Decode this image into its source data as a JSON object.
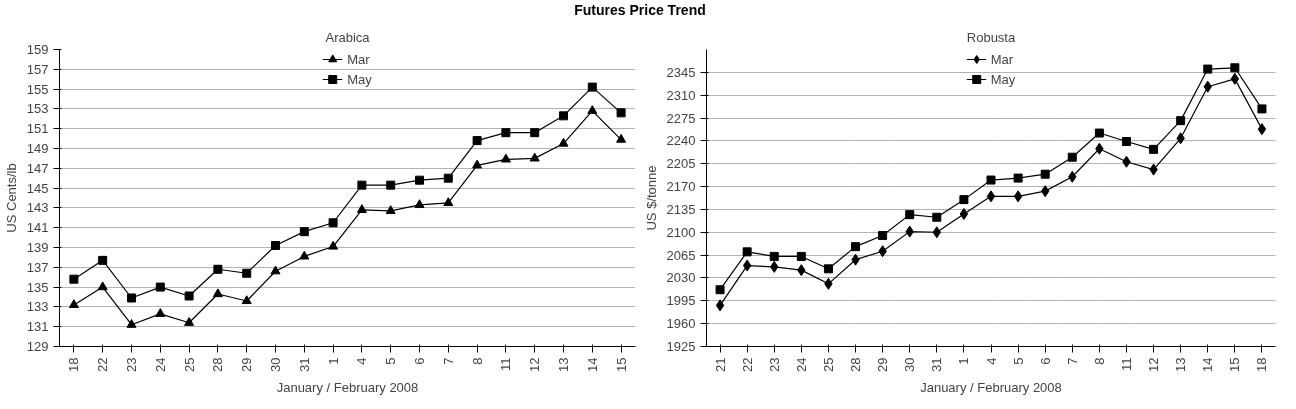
{
  "chart_data": [
    {
      "type": "line",
      "title": "Arabica",
      "annotations": [
        "Futures Price Trend"
      ],
      "xlabel": "January / February 2008",
      "ylabel": "US Cents/lb",
      "categories": [
        "18",
        "22",
        "23",
        "24",
        "25",
        "28",
        "29",
        "30",
        "31",
        "1",
        "4",
        "5",
        "6",
        "7",
        "8",
        "11",
        "12",
        "13",
        "14",
        "15"
      ],
      "series": [
        {
          "name": "Mar",
          "color": "#000000",
          "marker": "triangle",
          "values": [
            133.2,
            135.0,
            131.2,
            132.3,
            131.4,
            134.3,
            133.6,
            136.6,
            138.1,
            139.1,
            142.8,
            142.7,
            143.3,
            143.5,
            147.3,
            147.9,
            148.0,
            149.5,
            152.8,
            149.9
          ]
        },
        {
          "name": "May",
          "color": "#000000",
          "marker": "square",
          "values": [
            135.8,
            137.7,
            133.9,
            135.0,
            134.1,
            136.8,
            136.4,
            139.2,
            140.6,
            141.5,
            145.3,
            145.3,
            145.8,
            146.0,
            149.8,
            150.6,
            150.6,
            152.3,
            155.2,
            152.6
          ]
        }
      ],
      "ylim": [
        129,
        159
      ],
      "yticks": [
        129,
        131,
        133,
        135,
        137,
        139,
        141,
        143,
        145,
        147,
        149,
        151,
        153,
        155,
        157,
        159
      ],
      "grid": "y",
      "legend": "top",
      "line_style": "solid"
    },
    {
      "type": "line",
      "title": "Robusta",
      "xlabel": "January / February 2008",
      "ylabel": "US $/tonne",
      "categories": [
        "21",
        "22",
        "23",
        "24",
        "25",
        "28",
        "29",
        "30",
        "31",
        "1",
        "4",
        "5",
        "6",
        "7",
        "8",
        "11",
        "12",
        "13",
        "14",
        "15",
        "18"
      ],
      "series": [
        {
          "name": "Mar",
          "color": "#000000",
          "marker": "diamond",
          "values": [
            1988,
            2049,
            2047,
            2042,
            2021,
            2058,
            2071,
            2101,
            2100,
            2128,
            2155,
            2155,
            2163,
            2185,
            2228,
            2208,
            2196,
            2244,
            2323,
            2335,
            2258
          ]
        },
        {
          "name": "May",
          "color": "#000000",
          "marker": "square",
          "values": [
            2012,
            2070,
            2063,
            2063,
            2044,
            2078,
            2095,
            2127,
            2123,
            2150,
            2180,
            2183,
            2189,
            2215,
            2252,
            2239,
            2227,
            2271,
            2350,
            2352,
            2289
          ]
        }
      ],
      "ylim": [
        1925,
        2380
      ],
      "yticks": [
        1925,
        1960,
        1995,
        2030,
        2065,
        2100,
        2135,
        2170,
        2205,
        2240,
        2275,
        2310,
        2345
      ],
      "grid": "y",
      "legend": "top",
      "line_style": "solid"
    }
  ]
}
